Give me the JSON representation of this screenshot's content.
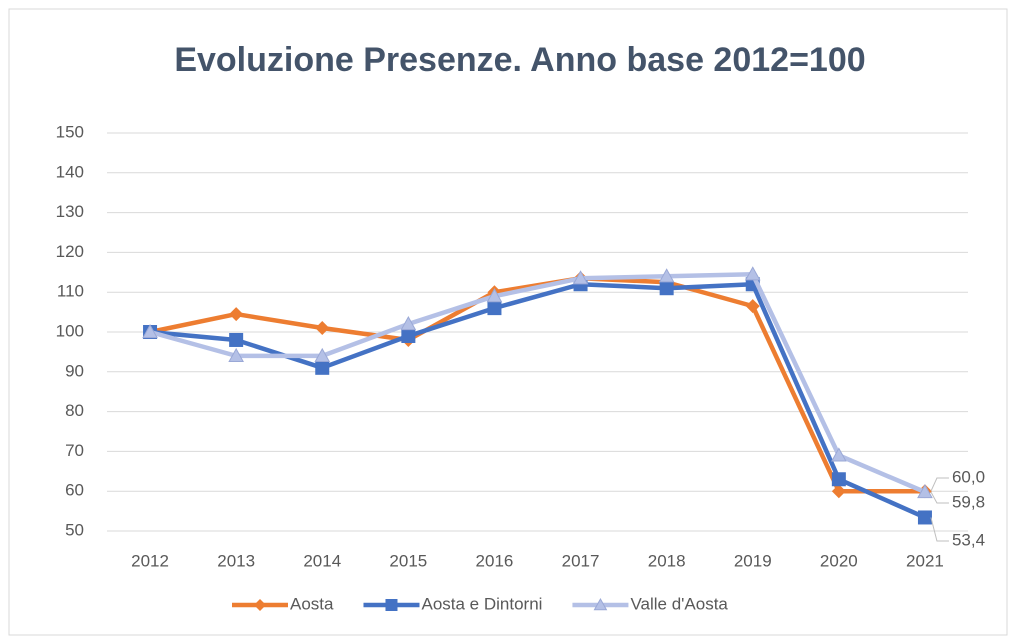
{
  "chart_data": {
    "type": "line",
    "title": "Evoluzione Presenze. Anno base 2012=100",
    "categories": [
      "2012",
      "2013",
      "2014",
      "2015",
      "2016",
      "2017",
      "2018",
      "2019",
      "2020",
      "2021"
    ],
    "series": [
      {
        "name": "Aosta",
        "color": "#ed7d31",
        "marker": "diamond",
        "values": [
          100,
          104.5,
          101,
          98,
          110,
          113.5,
          112.5,
          106.5,
          60,
          60.0
        ],
        "value_labels": [
          null,
          null,
          null,
          null,
          null,
          null,
          null,
          null,
          null,
          "60,0"
        ]
      },
      {
        "name": "Aosta e Dintorni",
        "color": "#4472c4",
        "marker": "square",
        "values": [
          100,
          98,
          91,
          99,
          106,
          112,
          111,
          112,
          63,
          53.4
        ],
        "value_labels": [
          null,
          null,
          null,
          null,
          null,
          null,
          null,
          null,
          null,
          "53,4"
        ]
      },
      {
        "name": "Valle d'Aosta",
        "color": "#b4c0e6",
        "marker": "triangle",
        "values": [
          100,
          94,
          94,
          102,
          109,
          113.5,
          114,
          114.5,
          69,
          59.8
        ],
        "value_labels": [
          null,
          null,
          null,
          null,
          null,
          null,
          null,
          null,
          null,
          "59,8"
        ]
      }
    ],
    "ylim": [
      50,
      150
    ],
    "yticks": [
      50,
      60,
      70,
      80,
      90,
      100,
      110,
      120,
      130,
      140,
      150
    ],
    "grid": true,
    "legend": "bottom"
  }
}
